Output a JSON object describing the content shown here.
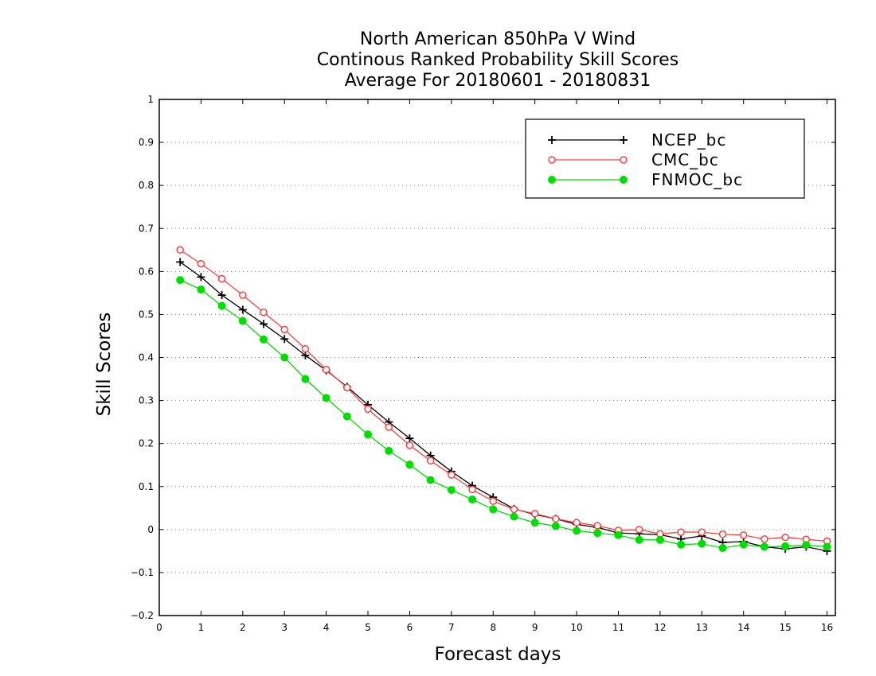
{
  "chart_data": {
    "type": "line",
    "title_lines": [
      "North American 850hPa V Wind",
      "Continous Ranked Probability Skill Scores",
      "Average For 20180601 - 20180831"
    ],
    "xlabel": "Forecast days",
    "ylabel": "Skill Scores",
    "xlim": [
      0,
      16.2
    ],
    "ylim": [
      -0.2,
      1
    ],
    "x_ticks": [
      0,
      1,
      2,
      3,
      4,
      5,
      6,
      7,
      8,
      9,
      10,
      11,
      12,
      13,
      14,
      15,
      16
    ],
    "y_ticks": [
      -0.2,
      -0.1,
      0,
      0.1,
      0.2,
      0.3,
      0.4,
      0.5,
      0.6,
      0.7,
      0.8,
      0.9,
      1
    ],
    "y_tick_labels": [
      "−0.2",
      "−0.1",
      "0",
      "0.1",
      "0.2",
      "0.3",
      "0.4",
      "0.5",
      "0.6",
      "0.7",
      "0.8",
      "0.9",
      "1"
    ],
    "grid": "horizontal dotted",
    "legend_position": "top-right",
    "x": [
      0.5,
      1,
      1.5,
      2,
      2.5,
      3,
      3.5,
      4,
      4.5,
      5,
      5.5,
      6,
      6.5,
      7,
      7.5,
      8,
      8.5,
      9,
      9.5,
      10,
      10.5,
      11,
      11.5,
      12,
      12.5,
      13,
      13.5,
      14,
      14.5,
      15,
      15.5,
      16
    ],
    "series": [
      {
        "name": "NCEP_bc",
        "color": "#000000",
        "marker": "plus",
        "values": [
          0.622,
          0.587,
          0.545,
          0.511,
          0.478,
          0.443,
          0.405,
          0.37,
          0.332,
          0.29,
          0.25,
          0.212,
          0.172,
          0.135,
          0.102,
          0.075,
          0.048,
          0.035,
          0.025,
          0.012,
          0.005,
          -0.008,
          -0.01,
          -0.012,
          -0.022,
          -0.015,
          -0.03,
          -0.028,
          -0.04,
          -0.045,
          -0.04,
          -0.05
        ]
      },
      {
        "name": "CMC_bc",
        "color": "#ff4040",
        "marker": "open-circle",
        "values": [
          0.65,
          0.618,
          0.583,
          0.545,
          0.505,
          0.465,
          0.42,
          0.372,
          0.33,
          0.28,
          0.238,
          0.196,
          0.16,
          0.127,
          0.093,
          0.066,
          0.047,
          0.037,
          0.025,
          0.016,
          0.009,
          -0.002,
          0.0,
          -0.01,
          -0.006,
          -0.006,
          -0.011,
          -0.013,
          -0.022,
          -0.018,
          -0.023,
          -0.027
        ]
      },
      {
        "name": "FNMOC_bc",
        "color": "#00dd00",
        "marker": "filled-circle",
        "values": [
          0.58,
          0.558,
          0.52,
          0.485,
          0.442,
          0.4,
          0.35,
          0.306,
          0.263,
          0.221,
          0.183,
          0.151,
          0.115,
          0.092,
          0.07,
          0.047,
          0.03,
          0.016,
          0.008,
          -0.003,
          -0.008,
          -0.013,
          -0.024,
          -0.024,
          -0.035,
          -0.033,
          -0.043,
          -0.035,
          -0.04,
          -0.039,
          -0.036,
          -0.04
        ]
      }
    ]
  }
}
